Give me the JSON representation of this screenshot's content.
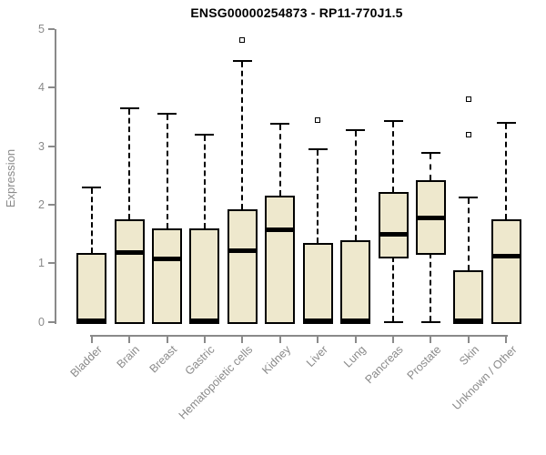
{
  "chart_data": {
    "type": "boxplot",
    "title": "ENSG00000254873 - RP11-770J1.5",
    "xlabel": "",
    "ylabel": "Expression",
    "ylim": [
      0,
      5
    ],
    "yticks": [
      0,
      1,
      2,
      3,
      4,
      5
    ],
    "grid": false,
    "legend": "none",
    "categories": [
      "Bladder",
      "Brain",
      "Breast",
      "Gastric",
      "Hematopoietic cells",
      "Kidney",
      "Liver",
      "Lung",
      "Pancreas",
      "Prostate",
      "Skin",
      "Unknown / Other"
    ],
    "boxes": [
      {
        "category": "Bladder",
        "whisker_low": 0,
        "q1": 0,
        "median": 0.02,
        "q3": 1.18,
        "whisker_high": 2.3,
        "outliers": []
      },
      {
        "category": "Brain",
        "whisker_low": 0,
        "q1": 0,
        "median": 1.18,
        "q3": 1.75,
        "whisker_high": 3.65,
        "outliers": []
      },
      {
        "category": "Breast",
        "whisker_low": 0,
        "q1": 0,
        "median": 1.08,
        "q3": 1.6,
        "whisker_high": 3.55,
        "outliers": []
      },
      {
        "category": "Gastric",
        "whisker_low": 0,
        "q1": 0,
        "median": 0.02,
        "q3": 1.6,
        "whisker_high": 3.2,
        "outliers": []
      },
      {
        "category": "Hematopoietic cells",
        "whisker_low": 0,
        "q1": 0,
        "median": 1.22,
        "q3": 1.92,
        "whisker_high": 4.45,
        "outliers": [
          4.82
        ]
      },
      {
        "category": "Kidney",
        "whisker_low": 0,
        "q1": 0,
        "median": 1.57,
        "q3": 2.15,
        "whisker_high": 3.38,
        "outliers": []
      },
      {
        "category": "Liver",
        "whisker_low": 0,
        "q1": 0,
        "median": 0.02,
        "q3": 1.35,
        "whisker_high": 2.95,
        "outliers": [
          3.45
        ]
      },
      {
        "category": "Lung",
        "whisker_low": 0,
        "q1": 0,
        "median": 0.02,
        "q3": 1.4,
        "whisker_high": 3.27,
        "outliers": []
      },
      {
        "category": "Pancreas",
        "whisker_low": 0,
        "q1": 1.12,
        "median": 1.5,
        "q3": 2.22,
        "whisker_high": 3.43,
        "outliers": []
      },
      {
        "category": "Prostate",
        "whisker_low": 0,
        "q1": 1.17,
        "median": 1.77,
        "q3": 2.42,
        "whisker_high": 2.88,
        "outliers": []
      },
      {
        "category": "Skin",
        "whisker_low": 0,
        "q1": 0,
        "median": 0.02,
        "q3": 0.88,
        "whisker_high": 2.12,
        "outliers": [
          3.2,
          3.8
        ]
      },
      {
        "category": "Unknown / Other",
        "whisker_low": 0,
        "q1": 0,
        "median": 1.12,
        "q3": 1.75,
        "whisker_high": 3.4,
        "outliers": []
      }
    ],
    "colors": {
      "box_fill": "#EEE8CD",
      "box_border": "#000000",
      "median": "#000000",
      "whisker": "#000000",
      "axis": "#8a8a8a",
      "tick_label": "#8a8a8a",
      "title": "#000000",
      "background": "#ffffff"
    }
  }
}
